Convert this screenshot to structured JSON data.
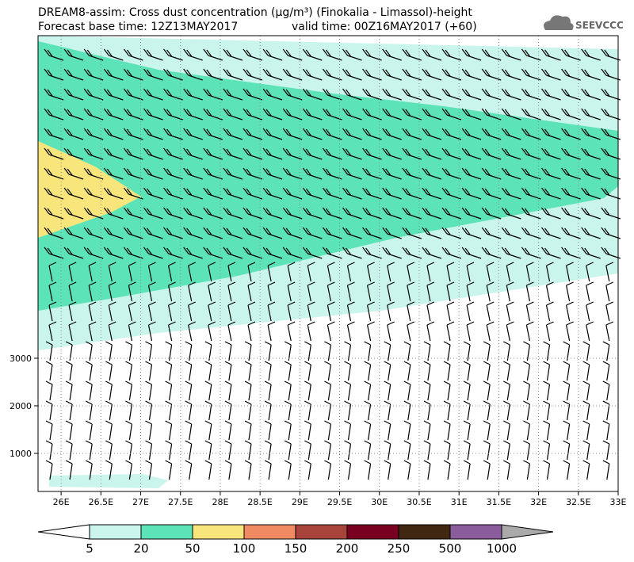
{
  "chart_data": {
    "type": "contour",
    "title": "DREAM8-assim: Cross dust concentration (μg/m³) (Finokalia - Limassol)-height",
    "subtitle_left": "Forecast base time: 12Z13MAY2017",
    "subtitle_right": "valid time: 00Z16MAY2017 (+60)",
    "logo": "SEEVCCC",
    "xlim": [
      25.71,
      33
    ],
    "ylim": [
      200,
      9780
    ],
    "xticks": [
      {
        "value": 26,
        "label": "26E"
      },
      {
        "value": 26.5,
        "label": "26.5E"
      },
      {
        "value": 27,
        "label": "27E"
      },
      {
        "value": 27.5,
        "label": "27.5E"
      },
      {
        "value": 28,
        "label": "28E"
      },
      {
        "value": 28.5,
        "label": "28.5E"
      },
      {
        "value": 29,
        "label": "29E"
      },
      {
        "value": 29.5,
        "label": "29.5E"
      },
      {
        "value": 30,
        "label": "30E"
      },
      {
        "value": 30.5,
        "label": "30.5E"
      },
      {
        "value": 31,
        "label": "31E"
      },
      {
        "value": 31.5,
        "label": "31.5E"
      },
      {
        "value": 32,
        "label": "32E"
      },
      {
        "value": 32.5,
        "label": "32.5E"
      },
      {
        "value": 33,
        "label": "33E"
      }
    ],
    "yticks": [
      1000,
      2000,
      3000
    ],
    "grid": true,
    "levels": [
      5,
      20,
      50,
      100,
      150,
      200,
      250,
      500,
      1000
    ],
    "level_colors": [
      "#ffffff",
      "#c9f5ec",
      "#5de3b8",
      "#f8e67d",
      "#ef8a63",
      "#a8433b",
      "#7a0022",
      "#3f2712",
      "#8b5c9c",
      "#aaaaaa"
    ]
  }
}
